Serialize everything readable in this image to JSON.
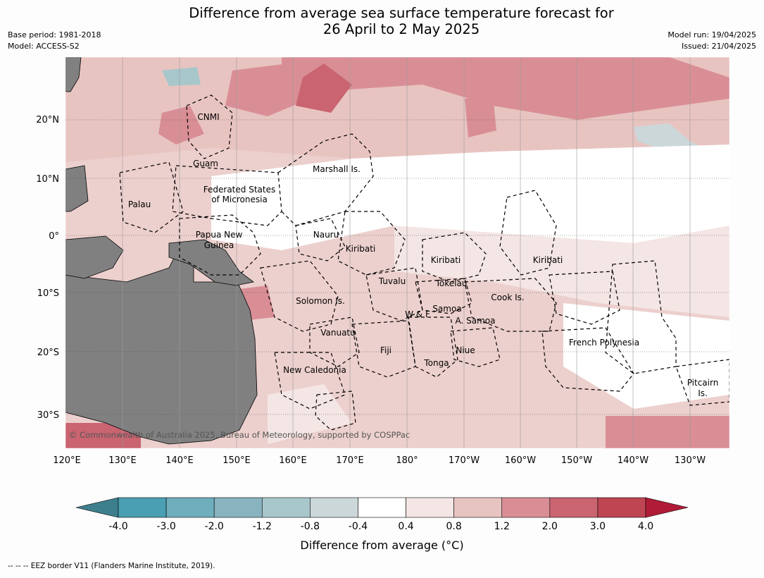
{
  "title": {
    "line1": "Difference from average sea surface temperature forecast for",
    "line2": "26 April to 2 May 2025"
  },
  "meta": {
    "base_period": "Base period: 1981-2018",
    "model": "Model: ACCESS-S2",
    "model_run": "Model run: 19/04/2025",
    "issued": "Issued: 21/04/2025"
  },
  "copyright": "© Commonwealth of Australia 2025, Bureau of Meteorology, supported by COSPPac",
  "lon_ticks": [
    "120°E",
    "130°E",
    "140°E",
    "150°E",
    "160°E",
    "170°E",
    "180°",
    "170°W",
    "160°W",
    "150°W",
    "140°W",
    "130°W"
  ],
  "lat_ticks": [
    "20°N",
    "10°N",
    "0°",
    "10°S",
    "20°S",
    "30°S"
  ],
  "regions": [
    {
      "name": "CNMI"
    },
    {
      "name": "Guam"
    },
    {
      "name": "Marshall Is."
    },
    {
      "name": "Federated States"
    },
    {
      "name": "of Micronesia"
    },
    {
      "name": "Palau"
    },
    {
      "name": "Papua New"
    },
    {
      "name": "Guinea"
    },
    {
      "name": "Nauru"
    },
    {
      "name": "Kiribati"
    },
    {
      "name": "Kiribati"
    },
    {
      "name": "Kiribati"
    },
    {
      "name": "Tuvalu"
    },
    {
      "name": "Tokelau"
    },
    {
      "name": "Solomon Is."
    },
    {
      "name": "Cook Is."
    },
    {
      "name": "Samoa"
    },
    {
      "name": "W & F"
    },
    {
      "name": "A. Samoa"
    },
    {
      "name": "Vanuatu"
    },
    {
      "name": "Fiji"
    },
    {
      "name": "Niue"
    },
    {
      "name": "French Polynesia"
    },
    {
      "name": "Tonga"
    },
    {
      "name": "New Caledonia"
    },
    {
      "name": "Pitcairn"
    },
    {
      "name": "Is."
    }
  ],
  "colorbar": {
    "title": "Difference from average (°C)",
    "ticks": [
      "-4.0",
      "-3.0",
      "-2.0",
      "-1.2",
      "-0.8",
      "-0.4",
      "0.4",
      "0.8",
      "1.2",
      "2.0",
      "3.0",
      "4.0"
    ],
    "colors": [
      "#3d7f8c",
      "#4aa0b2",
      "#6eaebd",
      "#88b4c0",
      "#a8c7cb",
      "#ccd7da",
      "#ffffff",
      "#f4e6e4",
      "#e8c4c1",
      "#d98e96",
      "#c96470",
      "#bf4553",
      "#b01c37"
    ]
  },
  "footnote": "--  --  -- EEZ border V11 (Flanders Marine Institute, 2019)."
}
